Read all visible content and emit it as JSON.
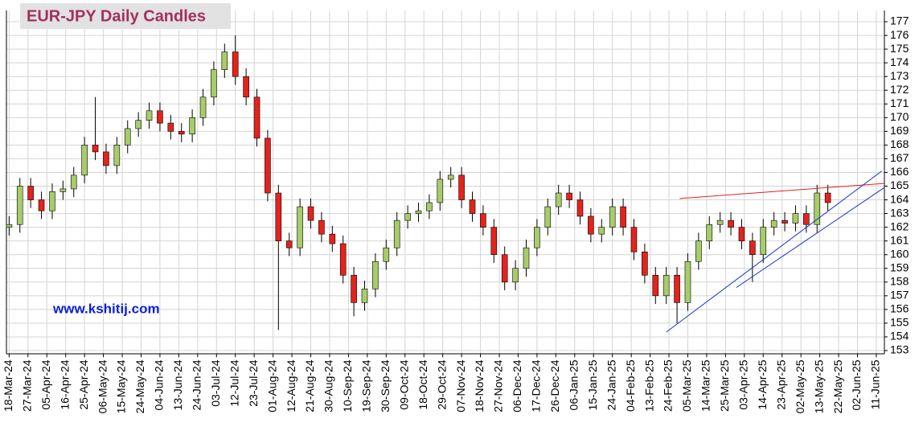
{
  "chart_data": {
    "type": "candlestick",
    "title": "EUR-JPY Daily  Candles",
    "watermark": "www.kshitij.com",
    "up_color": "#a8cc6a",
    "down_color": "#e3231c",
    "grid": true,
    "xlim": [
      -1,
      325
    ],
    "ylim": [
      152.8,
      177.8
    ],
    "yticks": [
      153,
      154,
      155,
      156,
      157,
      158,
      159,
      160,
      161,
      162,
      163,
      164,
      165,
      166,
      167,
      168,
      169,
      170,
      171,
      172,
      173,
      174,
      175,
      176,
      177
    ],
    "xticks": [
      {
        "value": 0,
        "label": "18-Mar-24"
      },
      {
        "value": 7,
        "label": "27-Mar-24"
      },
      {
        "value": 14,
        "label": "05-Apr-24"
      },
      {
        "value": 21,
        "label": "16-Apr-24"
      },
      {
        "value": 28,
        "label": "25-Apr-24"
      },
      {
        "value": 35,
        "label": "06-May-24"
      },
      {
        "value": 42,
        "label": "15-May-24"
      },
      {
        "value": 49,
        "label": "24-May-24"
      },
      {
        "value": 56,
        "label": "04-Jun-24"
      },
      {
        "value": 63,
        "label": "13-Jun-24"
      },
      {
        "value": 70,
        "label": "24-Jun-24"
      },
      {
        "value": 77,
        "label": "03-Jul-24"
      },
      {
        "value": 84,
        "label": "12-Jul-24"
      },
      {
        "value": 91,
        "label": "23-Jul-24"
      },
      {
        "value": 98,
        "label": "01-Aug-24"
      },
      {
        "value": 105,
        "label": "12-Aug-24"
      },
      {
        "value": 112,
        "label": "21-Aug-24"
      },
      {
        "value": 119,
        "label": "30-Aug-24"
      },
      {
        "value": 126,
        "label": "10-Sep-24"
      },
      {
        "value": 133,
        "label": "19-Sep-24"
      },
      {
        "value": 140,
        "label": "30-Sep-24"
      },
      {
        "value": 147,
        "label": "09-Oct-24"
      },
      {
        "value": 154,
        "label": "18-Oct-24"
      },
      {
        "value": 161,
        "label": "29-Oct-24"
      },
      {
        "value": 168,
        "label": "07-Nov-24"
      },
      {
        "value": 175,
        "label": "18-Nov-24"
      },
      {
        "value": 182,
        "label": "27-Nov-24"
      },
      {
        "value": 189,
        "label": "06-Dec-24"
      },
      {
        "value": 196,
        "label": "17-Dec-24"
      },
      {
        "value": 203,
        "label": "26-Dec-24"
      },
      {
        "value": 210,
        "label": "06-Jan-25"
      },
      {
        "value": 217,
        "label": "15-Jan-25"
      },
      {
        "value": 224,
        "label": "24-Jan-25"
      },
      {
        "value": 231,
        "label": "04-Feb-25"
      },
      {
        "value": 238,
        "label": "13-Feb-25"
      },
      {
        "value": 245,
        "label": "24-Feb-25"
      },
      {
        "value": 252,
        "label": "05-Mar-25"
      },
      {
        "value": 259,
        "label": "14-Mar-25"
      },
      {
        "value": 266,
        "label": "25-Mar-25"
      },
      {
        "value": 273,
        "label": "03-Apr-25"
      },
      {
        "value": 280,
        "label": "14-Apr-25"
      },
      {
        "value": 287,
        "label": "23-Apr-25"
      },
      {
        "value": 294,
        "label": "02-May-25"
      },
      {
        "value": 301,
        "label": "13-May-25"
      },
      {
        "value": 308,
        "label": "22-May-25"
      },
      {
        "value": 315,
        "label": "02-Jun-25"
      },
      {
        "value": 322,
        "label": "11-Jun-25"
      }
    ],
    "x": [
      0,
      4,
      8,
      12,
      16,
      20,
      24,
      28,
      32,
      36,
      40,
      44,
      48,
      52,
      56,
      60,
      64,
      68,
      72,
      76,
      80,
      84,
      88,
      92,
      96,
      100,
      104,
      108,
      112,
      116,
      120,
      124,
      128,
      132,
      136,
      140,
      144,
      148,
      152,
      156,
      160,
      164,
      168,
      172,
      176,
      180,
      184,
      188,
      192,
      196,
      200,
      204,
      208,
      212,
      216,
      220,
      224,
      228,
      232,
      236,
      240,
      244,
      248,
      252,
      256,
      260,
      264,
      268,
      272,
      276,
      280,
      284,
      288,
      292,
      296,
      300,
      304
    ],
    "open": [
      162.0,
      162.2,
      165.0,
      164.0,
      163.2,
      164.6,
      164.8,
      165.8,
      168.0,
      167.5,
      166.5,
      168.0,
      169.2,
      169.8,
      170.5,
      169.6,
      169.0,
      168.8,
      170.0,
      171.5,
      173.5,
      174.8,
      173.0,
      171.5,
      168.5,
      164.5,
      161.0,
      160.5,
      163.5,
      162.5,
      161.5,
      160.8,
      158.5,
      156.5,
      157.5,
      159.5,
      160.5,
      162.5,
      163.0,
      163.2,
      163.8,
      165.5,
      165.8,
      164.0,
      163.0,
      162.0,
      160.0,
      158.0,
      159.0,
      160.5,
      162.0,
      163.5,
      164.5,
      164.0,
      162.8,
      161.5,
      162.0,
      163.5,
      162.0,
      160.2,
      158.5,
      157.0,
      158.5,
      156.5,
      159.5,
      161.0,
      162.2,
      162.5,
      162.0,
      161.0,
      160.0,
      162.0,
      162.5,
      162.3,
      163.0,
      162.2,
      164.5
    ],
    "high": [
      162.8,
      165.6,
      165.6,
      164.6,
      165.2,
      165.4,
      166.4,
      168.6,
      171.5,
      168.1,
      168.6,
      169.8,
      170.4,
      171.1,
      171.1,
      170.2,
      169.6,
      170.6,
      172.1,
      174.1,
      175.4,
      176.0,
      173.6,
      172.1,
      169.1,
      165.1,
      161.6,
      164.1,
      164.1,
      163.1,
      162.1,
      161.4,
      159.1,
      158.1,
      160.1,
      161.1,
      163.1,
      163.6,
      163.8,
      164.4,
      166.1,
      166.4,
      166.4,
      164.6,
      163.6,
      162.6,
      160.6,
      159.6,
      161.1,
      162.6,
      164.1,
      165.1,
      165.1,
      164.6,
      163.4,
      162.6,
      164.1,
      164.1,
      162.6,
      160.8,
      159.1,
      159.1,
      159.1,
      160.1,
      161.6,
      162.8,
      163.1,
      163.1,
      162.6,
      161.6,
      162.6,
      163.1,
      163.1,
      163.6,
      163.6,
      165.1,
      165.1
    ],
    "low": [
      161.4,
      161.6,
      163.4,
      162.6,
      162.6,
      164.0,
      164.2,
      165.2,
      166.9,
      165.9,
      165.9,
      167.4,
      168.6,
      169.2,
      169.0,
      168.4,
      168.2,
      168.2,
      169.4,
      170.9,
      172.9,
      172.4,
      170.9,
      167.9,
      163.9,
      154.5,
      159.9,
      159.9,
      161.9,
      160.9,
      160.2,
      157.9,
      155.5,
      155.9,
      156.9,
      158.9,
      159.9,
      161.9,
      162.4,
      162.6,
      163.2,
      164.9,
      163.4,
      162.4,
      161.4,
      159.4,
      157.4,
      157.4,
      158.4,
      159.9,
      161.4,
      162.9,
      163.4,
      162.2,
      160.9,
      160.9,
      161.4,
      161.4,
      159.6,
      157.9,
      156.4,
      156.4,
      155.0,
      155.9,
      158.9,
      160.4,
      161.6,
      161.4,
      160.4,
      158.0,
      159.4,
      161.4,
      161.7,
      161.7,
      161.6,
      161.6,
      163.2
    ],
    "close": [
      162.2,
      165.0,
      164.0,
      163.2,
      164.6,
      164.8,
      165.8,
      168.0,
      167.5,
      166.5,
      168.0,
      169.2,
      169.8,
      170.5,
      169.6,
      169.0,
      168.8,
      170.0,
      171.5,
      173.5,
      174.8,
      173.0,
      171.5,
      168.5,
      164.5,
      161.0,
      160.5,
      163.5,
      162.5,
      161.5,
      160.8,
      158.5,
      156.5,
      157.5,
      159.5,
      160.5,
      162.5,
      163.0,
      163.2,
      163.8,
      165.5,
      165.8,
      164.0,
      163.0,
      162.0,
      160.0,
      158.0,
      159.0,
      160.5,
      162.0,
      163.5,
      164.5,
      164.0,
      162.8,
      161.5,
      162.0,
      163.5,
      162.0,
      160.2,
      158.5,
      157.0,
      158.5,
      156.5,
      159.5,
      161.0,
      162.2,
      162.5,
      162.0,
      161.0,
      160.0,
      162.0,
      162.5,
      162.3,
      163.0,
      162.2,
      164.5,
      163.8
    ],
    "trend_lines": [
      {
        "color": "#e3231c",
        "x": [
          249,
          325
        ],
        "y": [
          164.1,
          165.2
        ]
      },
      {
        "color": "#1a2fd0",
        "x": [
          244,
          324
        ],
        "y": [
          154.35,
          166.1
        ]
      },
      {
        "color": "#1a2fd0",
        "x": [
          270,
          325
        ],
        "y": [
          157.6,
          164.9
        ]
      }
    ]
  }
}
